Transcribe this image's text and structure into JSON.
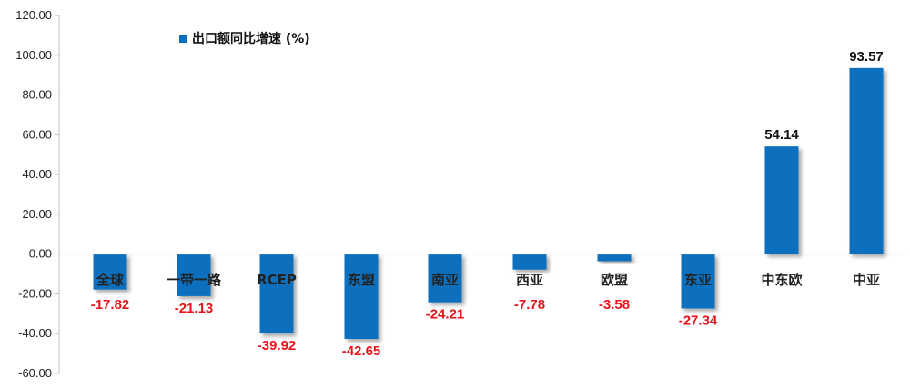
{
  "chart_data": {
    "type": "bar",
    "categories": [
      "全球",
      "一带一路",
      "RCEP",
      "东盟",
      "南亚",
      "西亚",
      "欧盟",
      "东亚",
      "中东欧",
      "中亚"
    ],
    "series": [
      {
        "name": "出口额同比增速 (%)",
        "values": [
          -17.82,
          -21.13,
          -39.92,
          -42.65,
          -24.21,
          -7.78,
          -3.58,
          -27.34,
          54.14,
          93.57
        ],
        "labels": [
          "-17.82",
          "-21.13",
          "-39.92",
          "-42.65",
          "-24.21",
          "-7.78",
          "-3.58",
          "-27.34",
          "54.14",
          "93.57"
        ]
      }
    ],
    "ylim": [
      -60,
      120
    ],
    "yticks": [
      "120.00",
      "100.00",
      "80.00",
      "60.00",
      "40.00",
      "20.00",
      "0.00",
      "-20.00",
      "-40.00",
      "-60.00"
    ],
    "xlabel": "",
    "ylabel": "",
    "legend_position": "top-left",
    "grid": false
  },
  "colors": {
    "bar": "#0C6FBF",
    "negative_label": "#E8141B",
    "positive_label": "#111111",
    "axis": "#BFBFBF"
  }
}
